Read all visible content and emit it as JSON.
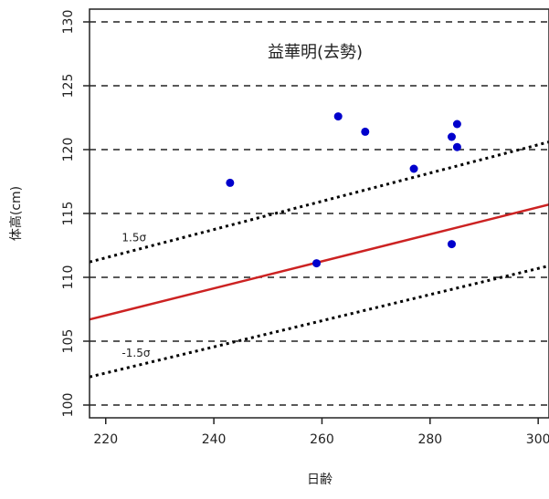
{
  "chart_data": {
    "type": "scatter",
    "title": "益華明(去勢)",
    "xlabel": "日齢",
    "ylabel": "体高(cm)",
    "xlim": [
      217,
      302
    ],
    "ylim": [
      99,
      131
    ],
    "xticks": [
      220,
      240,
      260,
      280,
      300
    ],
    "yticks": [
      100,
      105,
      110,
      115,
      120,
      125,
      130
    ],
    "grid": "horizontal dashed lines at y ticks",
    "points": [
      {
        "x": 243,
        "y": 117.4
      },
      {
        "x": 259,
        "y": 111.1
      },
      {
        "x": 263,
        "y": 122.6
      },
      {
        "x": 268,
        "y": 121.4
      },
      {
        "x": 277,
        "y": 118.5
      },
      {
        "x": 284,
        "y": 121.0
      },
      {
        "x": 284,
        "y": 112.6
      },
      {
        "x": 285,
        "y": 122.0
      },
      {
        "x": 285,
        "y": 120.2
      }
    ],
    "point_color": "#0000cc",
    "mean_line": {
      "x": [
        217,
        302
      ],
      "y": [
        106.7,
        115.7
      ],
      "color": "#cc2222"
    },
    "sigma_lines": [
      {
        "label": "1.5σ",
        "x": [
          217,
          302
        ],
        "y": [
          111.2,
          120.6
        ],
        "color": "#000000"
      },
      {
        "label": "-1.5σ",
        "x": [
          217,
          302
        ],
        "y": [
          102.2,
          110.9
        ],
        "color": "#000000"
      }
    ]
  }
}
